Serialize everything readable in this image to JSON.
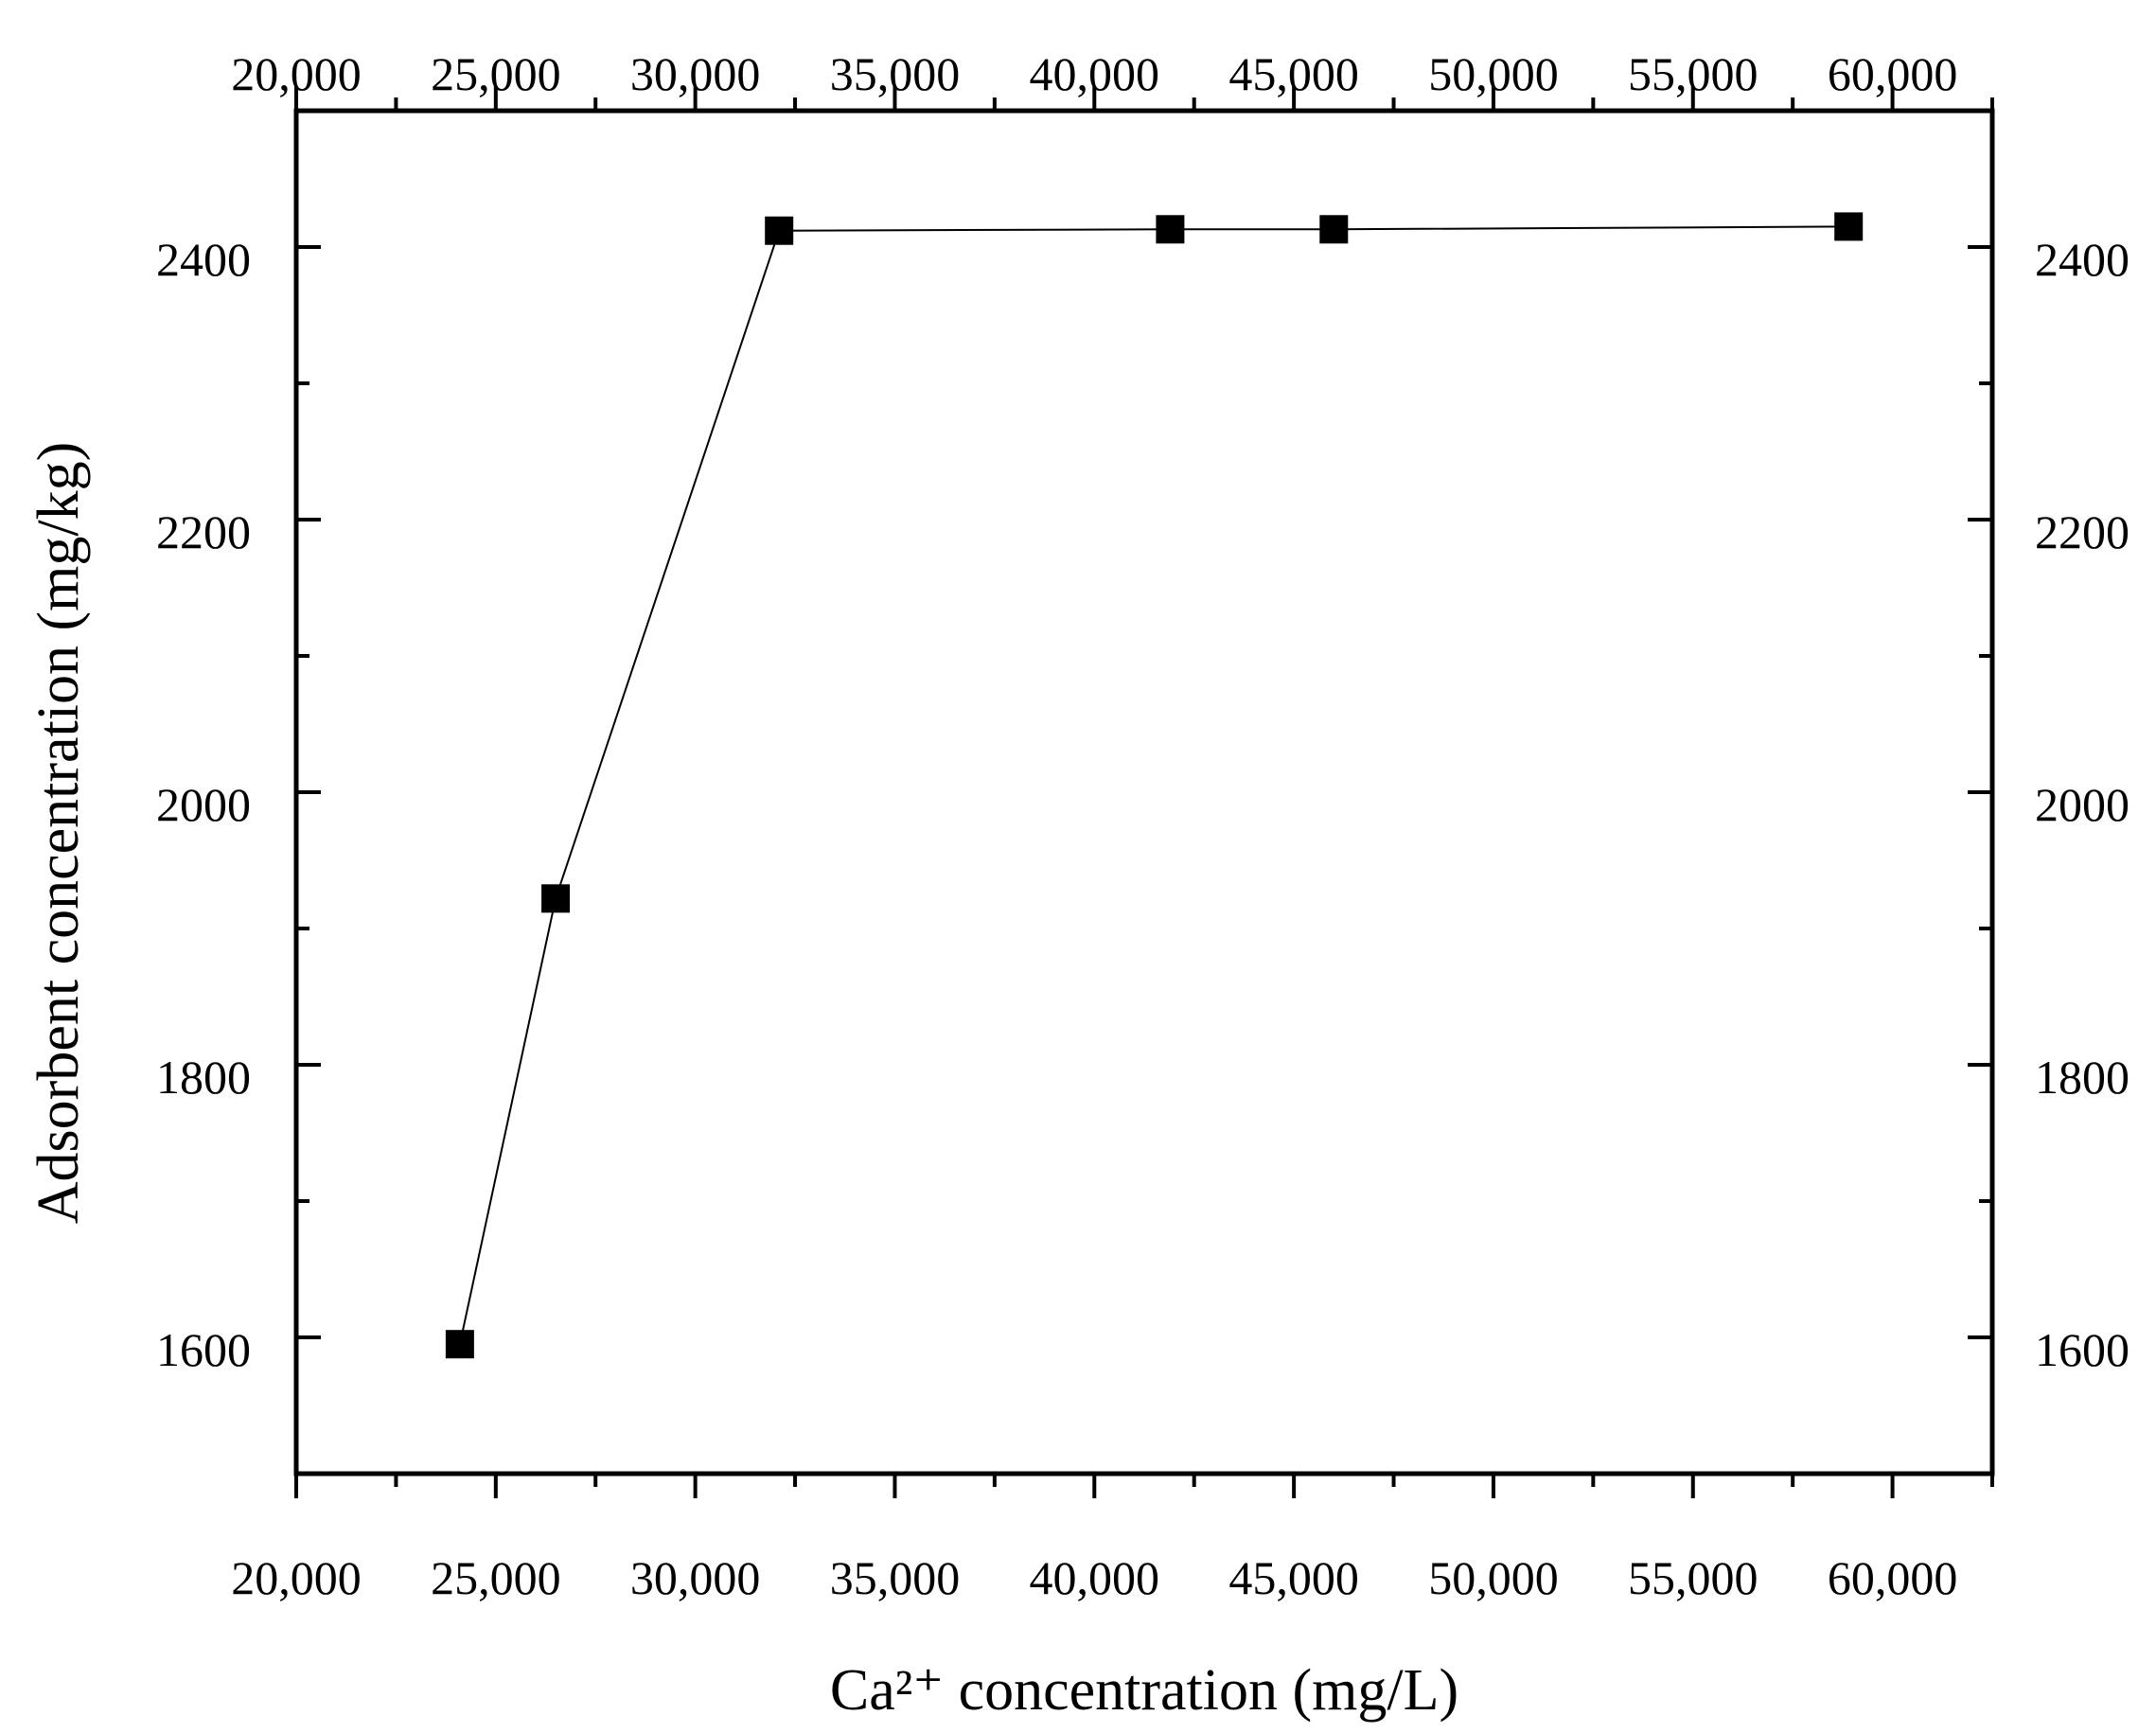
{
  "chart_data": {
    "type": "line",
    "title": "",
    "xlabel": "Ca²⁺ concentration (mg/L)",
    "ylabel": "Adsorbent concentration (mg/kg)",
    "xlim": [
      20000,
      62500
    ],
    "ylim": [
      1500,
      2500
    ],
    "x_ticks": [
      20000,
      25000,
      30000,
      35000,
      40000,
      45000,
      50000,
      55000,
      60000
    ],
    "x_tick_labels": [
      "20,000",
      "25,000",
      "30,000",
      "35,000",
      "40,000",
      "45,000",
      "50,000",
      "55,000",
      "60,000"
    ],
    "y_ticks": [
      1600,
      1800,
      2000,
      2200,
      2400
    ],
    "y_tick_labels": [
      "1600",
      "1800",
      "2000",
      "2200",
      "2400"
    ],
    "x_minor_step": 2500,
    "y_minor_step": 100,
    "mirror_top_axis": true,
    "mirror_right_axis": true,
    "grid": false,
    "legend": "none",
    "series": [
      {
        "marker": "square",
        "color": "#000000",
        "x": [
          24100,
          26500,
          32100,
          41900,
          46000,
          58900
        ],
        "y": [
          1595,
          1922,
          2412,
          2413,
          2413,
          2415
        ]
      }
    ]
  }
}
